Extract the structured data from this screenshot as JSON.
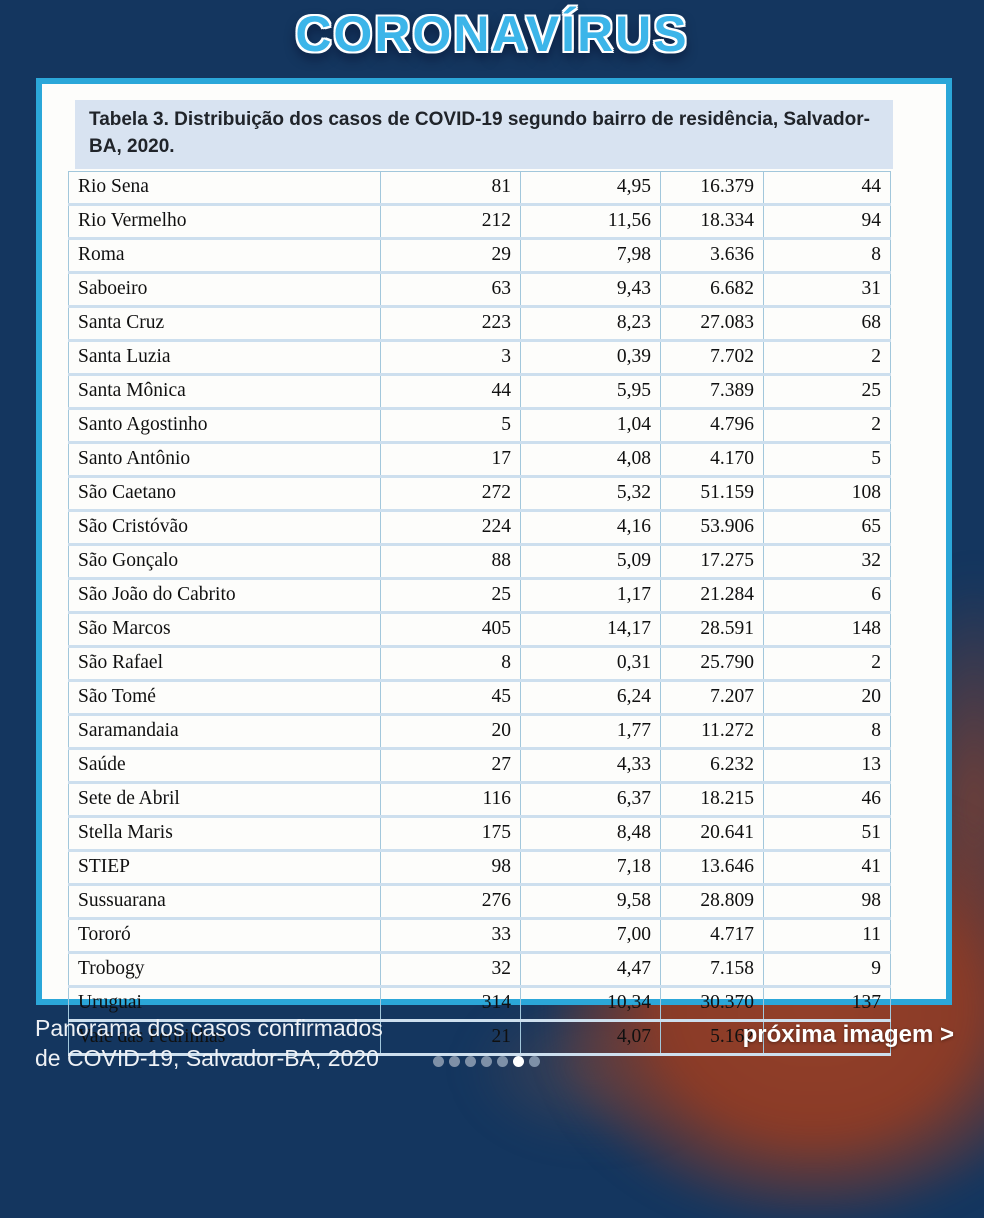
{
  "title": "CORONAVÍRUS",
  "colors": {
    "background": "#14365f",
    "card_border": "#2ba7d9",
    "caption_bg": "#d8e3f1",
    "title_fill": "#3cb5e9",
    "table_line": "#a2c7db",
    "dot_inactive": "#7e90a7",
    "dot_active": "#ffffff",
    "photo_red": "#8a3b27"
  },
  "table": {
    "caption": "Tabela 3. Distribuição dos casos de COVID-19 segundo bairro de residência, Salvador-BA, 2020.",
    "rows": [
      [
        "Rio Sena",
        "81",
        "4,95",
        "16.379",
        "44"
      ],
      [
        "Rio Vermelho",
        "212",
        "11,56",
        "18.334",
        "94"
      ],
      [
        "Roma",
        "29",
        "7,98",
        "3.636",
        "8"
      ],
      [
        "Saboeiro",
        "63",
        "9,43",
        "6.682",
        "31"
      ],
      [
        "Santa Cruz",
        "223",
        "8,23",
        "27.083",
        "68"
      ],
      [
        "Santa Luzia",
        "3",
        "0,39",
        "7.702",
        "2"
      ],
      [
        "Santa Mônica",
        "44",
        "5,95",
        "7.389",
        "25"
      ],
      [
        "Santo Agostinho",
        "5",
        "1,04",
        "4.796",
        "2"
      ],
      [
        "Santo Antônio",
        "17",
        "4,08",
        "4.170",
        "5"
      ],
      [
        "São Caetano",
        "272",
        "5,32",
        "51.159",
        "108"
      ],
      [
        "São Cristóvão",
        "224",
        "4,16",
        "53.906",
        "65"
      ],
      [
        "São Gonçalo",
        "88",
        "5,09",
        "17.275",
        "32"
      ],
      [
        "São João do Cabrito",
        "25",
        "1,17",
        "21.284",
        "6"
      ],
      [
        "São Marcos",
        "405",
        "14,17",
        "28.591",
        "148"
      ],
      [
        "São Rafael",
        "8",
        "0,31",
        "25.790",
        "2"
      ],
      [
        "São Tomé",
        "45",
        "6,24",
        "7.207",
        "20"
      ],
      [
        "Saramandaia",
        "20",
        "1,77",
        "11.272",
        "8"
      ],
      [
        "Saúde",
        "27",
        "4,33",
        "6.232",
        "13"
      ],
      [
        "Sete de Abril",
        "116",
        "6,37",
        "18.215",
        "46"
      ],
      [
        "Stella Maris",
        "175",
        "8,48",
        "20.641",
        "51"
      ],
      [
        "STIEP",
        "98",
        "7,18",
        "13.646",
        "41"
      ],
      [
        "Sussuarana",
        "276",
        "9,58",
        "28.809",
        "98"
      ],
      [
        "Tororó",
        "33",
        "7,00",
        "4.717",
        "11"
      ],
      [
        "Trobogy",
        "32",
        "4,47",
        "7.158",
        "9"
      ],
      [
        "Uruguai",
        "314",
        "10,34",
        "30.370",
        "137"
      ],
      [
        "Vale das Pedrinhas",
        "21",
        "4,07",
        "5.162",
        "5"
      ]
    ]
  },
  "footer": {
    "caption_line1": "Panorama dos casos confirmados",
    "caption_line2": "de COVID-19, Salvador-BA, 2020",
    "next_label": "próxima imagem >",
    "dots": {
      "count": 7,
      "active_index": 5
    }
  }
}
